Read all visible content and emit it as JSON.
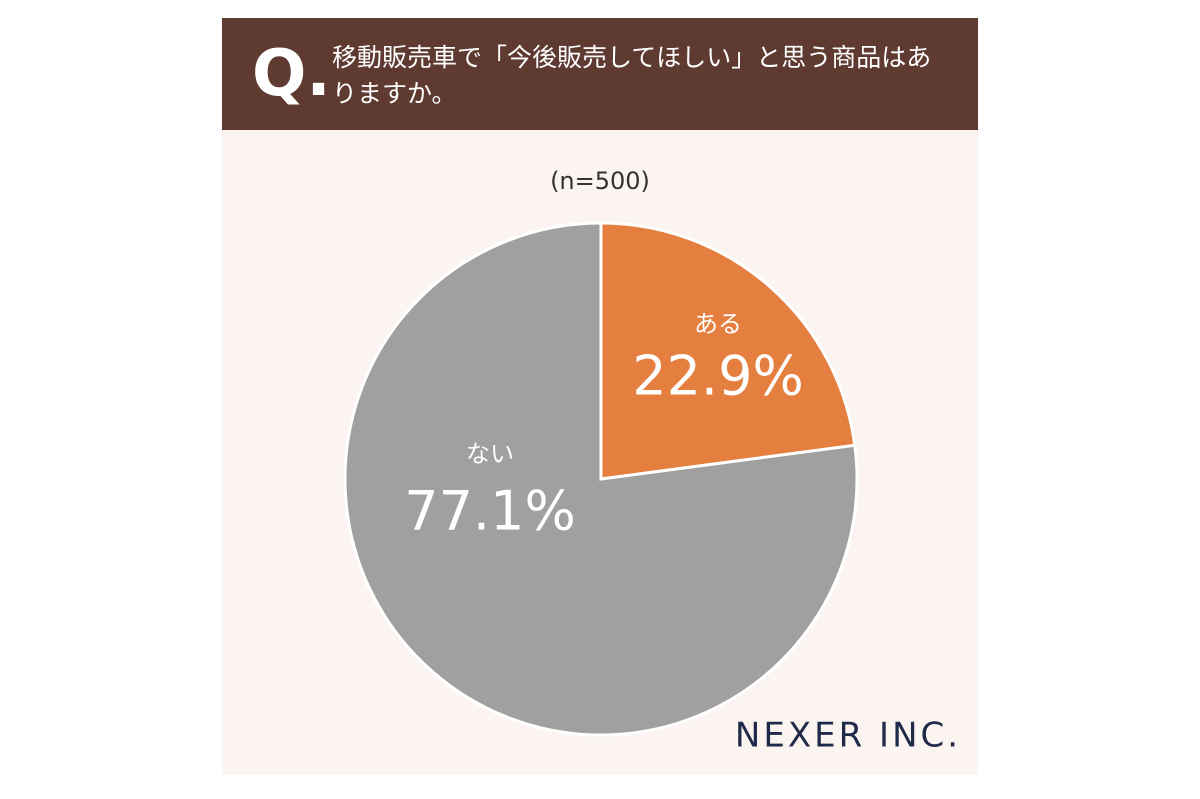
{
  "chart_data": {
    "type": "pie",
    "header_mark": "Q.",
    "title": "移動販売車で「今後販売してほしい」と思う商品はありますか。",
    "subtitle": "(n=500)",
    "categories": [
      "ある",
      "ない"
    ],
    "values": [
      22.9,
      77.1
    ],
    "value_labels": [
      "22.9%",
      "77.1%"
    ],
    "colors": [
      "#e57f3f",
      "#a0a0a0"
    ],
    "logo": "NEXER INC."
  }
}
